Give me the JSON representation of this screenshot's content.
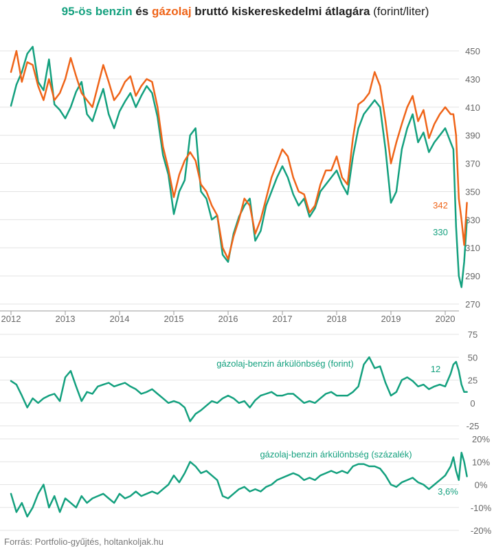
{
  "colors": {
    "benzin": "#13a07e",
    "gazolaj": "#ef6418",
    "grid": "#e3e3e3",
    "axis": "#999999",
    "text": "#666666"
  },
  "title": {
    "benzin": "95-ös benzin",
    "es": " és ",
    "gazolaj": "gázolaj",
    "rest_bold": " bruttó kiskereskedelmi átlagára",
    "unit": " (forint/liter)"
  },
  "source": "Forrás: Portfolio-gyűjtés, holtankoljak.hu",
  "chart_data": [
    {
      "type": "line",
      "title": "95-ös benzin és gázolaj bruttó kiskereskedelmi átlagára (forint/liter)",
      "x_ticks": [
        "2012",
        "2013",
        "2014",
        "2015",
        "2016",
        "2017",
        "2018",
        "2019",
        "2020"
      ],
      "ylim": [
        270,
        455
      ],
      "y_ticks": [
        270,
        290,
        310,
        330,
        350,
        370,
        390,
        410,
        430,
        450
      ],
      "grid": true,
      "series": [
        {
          "name": "95-ös benzin",
          "x": [
            2012.0,
            2012.1,
            2012.2,
            2012.3,
            2012.4,
            2012.5,
            2012.6,
            2012.7,
            2012.8,
            2012.9,
            2013.0,
            2013.1,
            2013.2,
            2013.3,
            2013.4,
            2013.5,
            2013.6,
            2013.7,
            2013.8,
            2013.9,
            2014.0,
            2014.1,
            2014.2,
            2014.3,
            2014.4,
            2014.5,
            2014.6,
            2014.7,
            2014.8,
            2014.9,
            2015.0,
            2015.1,
            2015.2,
            2015.3,
            2015.4,
            2015.5,
            2015.6,
            2015.7,
            2015.8,
            2015.9,
            2016.0,
            2016.1,
            2016.2,
            2016.3,
            2016.4,
            2016.5,
            2016.6,
            2016.7,
            2016.8,
            2016.9,
            2017.0,
            2017.1,
            2017.2,
            2017.3,
            2017.4,
            2017.5,
            2017.6,
            2017.7,
            2017.8,
            2017.9,
            2018.0,
            2018.1,
            2018.2,
            2018.3,
            2018.4,
            2018.5,
            2018.6,
            2018.7,
            2018.8,
            2018.9,
            2019.0,
            2019.1,
            2019.2,
            2019.3,
            2019.4,
            2019.5,
            2019.6,
            2019.7,
            2019.8,
            2019.9,
            2020.0,
            2020.1,
            2020.15,
            2020.2,
            2020.25,
            2020.3,
            2020.35,
            2020.4
          ],
          "y": [
            411,
            426,
            435,
            448,
            453,
            428,
            422,
            444,
            412,
            408,
            402,
            410,
            421,
            428,
            405,
            400,
            412,
            423,
            405,
            395,
            407,
            414,
            420,
            410,
            418,
            425,
            420,
            403,
            376,
            362,
            334,
            350,
            358,
            390,
            395,
            350,
            345,
            330,
            333,
            305,
            300,
            320,
            332,
            340,
            345,
            315,
            322,
            340,
            350,
            360,
            368,
            360,
            348,
            340,
            345,
            332,
            338,
            350,
            355,
            360,
            365,
            355,
            348,
            375,
            395,
            405,
            410,
            415,
            410,
            380,
            342,
            350,
            380,
            395,
            405,
            385,
            392,
            378,
            385,
            390,
            395,
            385,
            380,
            325,
            290,
            282,
            300,
            330
          ]
        },
        {
          "name": "gázolaj",
          "x": [
            2012.0,
            2012.1,
            2012.2,
            2012.3,
            2012.4,
            2012.5,
            2012.6,
            2012.7,
            2012.8,
            2012.9,
            2013.0,
            2013.1,
            2013.2,
            2013.3,
            2013.4,
            2013.5,
            2013.6,
            2013.7,
            2013.8,
            2013.9,
            2014.0,
            2014.1,
            2014.2,
            2014.3,
            2014.4,
            2014.5,
            2014.6,
            2014.7,
            2014.8,
            2014.9,
            2015.0,
            2015.1,
            2015.2,
            2015.3,
            2015.4,
            2015.5,
            2015.6,
            2015.7,
            2015.8,
            2015.9,
            2016.0,
            2016.1,
            2016.2,
            2016.3,
            2016.4,
            2016.5,
            2016.6,
            2016.7,
            2016.8,
            2016.9,
            2017.0,
            2017.1,
            2017.2,
            2017.3,
            2017.4,
            2017.5,
            2017.6,
            2017.7,
            2017.8,
            2017.9,
            2018.0,
            2018.1,
            2018.2,
            2018.3,
            2018.4,
            2018.5,
            2018.6,
            2018.7,
            2018.8,
            2018.9,
            2019.0,
            2019.1,
            2019.2,
            2019.3,
            2019.4,
            2019.5,
            2019.6,
            2019.7,
            2019.8,
            2019.9,
            2020.0,
            2020.1,
            2020.15,
            2020.2,
            2020.25,
            2020.3,
            2020.35,
            2020.4
          ],
          "y": [
            435,
            450,
            428,
            442,
            440,
            425,
            415,
            430,
            415,
            420,
            430,
            445,
            432,
            420,
            415,
            410,
            425,
            440,
            428,
            415,
            420,
            428,
            432,
            418,
            425,
            430,
            428,
            410,
            382,
            366,
            346,
            362,
            372,
            378,
            372,
            355,
            350,
            340,
            333,
            310,
            302,
            318,
            330,
            345,
            340,
            320,
            330,
            345,
            360,
            370,
            380,
            375,
            360,
            350,
            348,
            335,
            340,
            355,
            365,
            365,
            375,
            360,
            355,
            388,
            412,
            415,
            420,
            435,
            425,
            400,
            370,
            385,
            398,
            410,
            418,
            400,
            408,
            388,
            398,
            405,
            410,
            405,
            405,
            390,
            345,
            330,
            312,
            342
          ]
        }
      ],
      "annotations": [
        "342",
        "330"
      ]
    },
    {
      "type": "line",
      "ylim": [
        -25,
        75
      ],
      "y_ticks": [
        -25,
        0,
        25,
        50,
        75
      ],
      "grid": true,
      "series": [
        {
          "label": "gázolaj-benzin árkülönbség (forint)",
          "x": [
            2012.0,
            2012.1,
            2012.2,
            2012.3,
            2012.4,
            2012.5,
            2012.6,
            2012.7,
            2012.8,
            2012.9,
            2013.0,
            2013.1,
            2013.2,
            2013.3,
            2013.4,
            2013.5,
            2013.6,
            2013.7,
            2013.8,
            2013.9,
            2014.0,
            2014.1,
            2014.2,
            2014.3,
            2014.4,
            2014.5,
            2014.6,
            2014.7,
            2014.8,
            2014.9,
            2015.0,
            2015.1,
            2015.2,
            2015.3,
            2015.4,
            2015.5,
            2015.6,
            2015.7,
            2015.8,
            2015.9,
            2016.0,
            2016.1,
            2016.2,
            2016.3,
            2016.4,
            2016.5,
            2016.6,
            2016.7,
            2016.8,
            2016.9,
            2017.0,
            2017.1,
            2017.2,
            2017.3,
            2017.4,
            2017.5,
            2017.6,
            2017.7,
            2017.8,
            2017.9,
            2018.0,
            2018.1,
            2018.2,
            2018.3,
            2018.4,
            2018.5,
            2018.6,
            2018.7,
            2018.8,
            2018.9,
            2019.0,
            2019.1,
            2019.2,
            2019.3,
            2019.4,
            2019.5,
            2019.6,
            2019.7,
            2019.8,
            2019.9,
            2020.0,
            2020.1,
            2020.15,
            2020.2,
            2020.25,
            2020.3,
            2020.35,
            2020.4
          ],
          "y": [
            24,
            20,
            8,
            -5,
            5,
            0,
            5,
            8,
            10,
            2,
            28,
            35,
            18,
            2,
            12,
            10,
            18,
            20,
            22,
            18,
            20,
            22,
            18,
            15,
            10,
            12,
            15,
            10,
            5,
            0,
            2,
            0,
            -5,
            -20,
            -12,
            -8,
            -3,
            2,
            0,
            5,
            8,
            5,
            0,
            2,
            -5,
            3,
            8,
            10,
            12,
            8,
            8,
            10,
            10,
            5,
            0,
            2,
            0,
            5,
            10,
            12,
            8,
            8,
            8,
            12,
            18,
            42,
            50,
            38,
            40,
            22,
            8,
            12,
            25,
            28,
            24,
            18,
            20,
            15,
            18,
            20,
            18,
            32,
            42,
            45,
            35,
            20,
            12,
            12
          ]
        }
      ],
      "annotations": [
        "12"
      ]
    },
    {
      "type": "line",
      "ylim": [
        -20,
        20
      ],
      "y_ticks": [
        "-20%",
        "-10%",
        "0%",
        "10%",
        "20%"
      ],
      "grid": true,
      "series": [
        {
          "label": "gázolaj-benzin árkülönbség (százalék)",
          "x": [
            2012.0,
            2012.1,
            2012.2,
            2012.3,
            2012.4,
            2012.5,
            2012.6,
            2012.7,
            2012.8,
            2012.9,
            2013.0,
            2013.1,
            2013.2,
            2013.3,
            2013.4,
            2013.5,
            2013.6,
            2013.7,
            2013.8,
            2013.9,
            2014.0,
            2014.1,
            2014.2,
            2014.3,
            2014.4,
            2014.5,
            2014.6,
            2014.7,
            2014.8,
            2014.9,
            2015.0,
            2015.1,
            2015.2,
            2015.3,
            2015.4,
            2015.5,
            2015.6,
            2015.7,
            2015.8,
            2015.9,
            2016.0,
            2016.1,
            2016.2,
            2016.3,
            2016.4,
            2016.5,
            2016.6,
            2016.7,
            2016.8,
            2016.9,
            2017.0,
            2017.1,
            2017.2,
            2017.3,
            2017.4,
            2017.5,
            2017.6,
            2017.7,
            2017.8,
            2017.9,
            2018.0,
            2018.1,
            2018.2,
            2018.3,
            2018.4,
            2018.5,
            2018.6,
            2018.7,
            2018.8,
            2018.9,
            2019.0,
            2019.1,
            2019.2,
            2019.3,
            2019.4,
            2019.5,
            2019.6,
            2019.7,
            2019.8,
            2019.9,
            2020.0,
            2020.1,
            2020.15,
            2020.2,
            2020.25,
            2020.3,
            2020.35,
            2020.4
          ],
          "y": [
            -4,
            -12,
            -8,
            -14,
            -10,
            -4,
            0,
            -10,
            -5,
            -12,
            -6,
            -8,
            -10,
            -5,
            -8,
            -6,
            -5,
            -4,
            -6,
            -8,
            -4,
            -6,
            -5,
            -3,
            -5,
            -4,
            -3,
            -4,
            -2,
            0,
            4,
            1,
            5,
            10,
            8,
            5,
            6,
            4,
            2,
            -5,
            -6,
            -4,
            -2,
            -1,
            -3,
            -2,
            -3,
            -1,
            0,
            2,
            3,
            4,
            5,
            4,
            2,
            3,
            2,
            4,
            5,
            6,
            5,
            6,
            5,
            8,
            9,
            9,
            8,
            8,
            7,
            4,
            0,
            -1,
            1,
            2,
            3,
            1,
            0,
            -2,
            0,
            2,
            4,
            8,
            12,
            6,
            2,
            14,
            10,
            3.6
          ]
        }
      ],
      "annotations": [
        "3,6%"
      ]
    }
  ]
}
